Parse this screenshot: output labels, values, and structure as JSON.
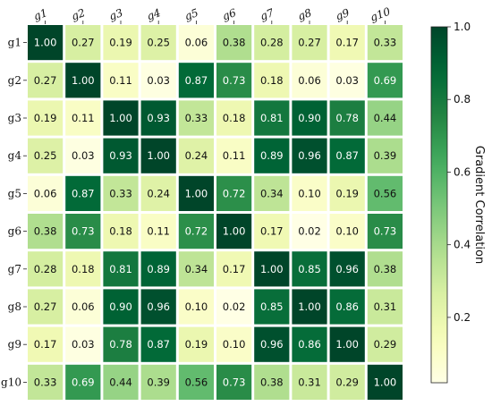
{
  "chart_data": {
    "type": "heatmap",
    "title": "",
    "x_labels": [
      "g1",
      "g2",
      "g3",
      "g4",
      "g5",
      "g6",
      "g7",
      "g8",
      "g9",
      "g10"
    ],
    "y_labels": [
      "g1",
      "g2",
      "g3",
      "g4",
      "g5",
      "g6",
      "g7",
      "g8",
      "g9",
      "g10"
    ],
    "values": [
      [
        1.0,
        0.27,
        0.19,
        0.25,
        0.06,
        0.38,
        0.28,
        0.27,
        0.17,
        0.33
      ],
      [
        0.27,
        1.0,
        0.11,
        0.03,
        0.87,
        0.73,
        0.18,
        0.06,
        0.03,
        0.69
      ],
      [
        0.19,
        0.11,
        1.0,
        0.93,
        0.33,
        0.18,
        0.81,
        0.9,
        0.78,
        0.44
      ],
      [
        0.25,
        0.03,
        0.93,
        1.0,
        0.24,
        0.11,
        0.89,
        0.96,
        0.87,
        0.39
      ],
      [
        0.06,
        0.87,
        0.33,
        0.24,
        1.0,
        0.72,
        0.34,
        0.1,
        0.19,
        0.56
      ],
      [
        0.38,
        0.73,
        0.18,
        0.11,
        0.72,
        1.0,
        0.17,
        0.02,
        0.1,
        0.73
      ],
      [
        0.28,
        0.18,
        0.81,
        0.89,
        0.34,
        0.17,
        1.0,
        0.85,
        0.96,
        0.38
      ],
      [
        0.27,
        0.06,
        0.9,
        0.96,
        0.1,
        0.02,
        0.85,
        1.0,
        0.86,
        0.31
      ],
      [
        0.17,
        0.03,
        0.78,
        0.87,
        0.19,
        0.1,
        0.96,
        0.86,
        1.0,
        0.29
      ],
      [
        0.33,
        0.69,
        0.44,
        0.39,
        0.56,
        0.73,
        0.38,
        0.31,
        0.29,
        1.0
      ]
    ],
    "value_format": "2 decimals",
    "colormap": "YlGn",
    "vmin": 0.02,
    "vmax": 1.0,
    "colorbar": {
      "label": "Gradient Correlation",
      "ticks": [
        0.2,
        0.4,
        0.6,
        0.8,
        1.0
      ],
      "tick_labels": [
        "0.2",
        "0.4",
        "0.6",
        "0.8",
        "1.0"
      ],
      "placement": "right"
    },
    "x_tick_position": "top",
    "cell_border_color": "#ffffff"
  }
}
